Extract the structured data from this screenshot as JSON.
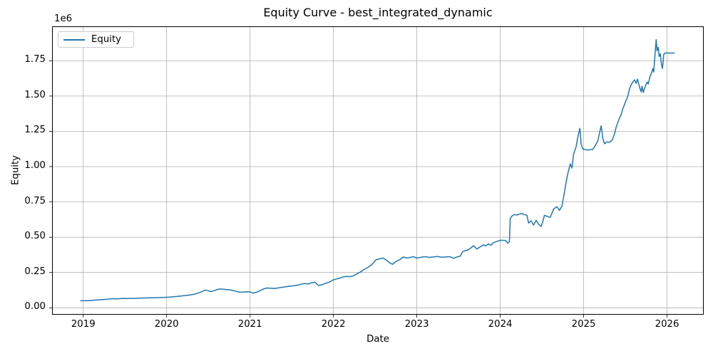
{
  "chart": {
    "title": "Equity Curve - best_integrated_dynamic",
    "xlabel": "Date",
    "ylabel": "Equity",
    "y_offset_label": "1e6",
    "legend": [
      {
        "label": "Equity",
        "color": "#1f77b4"
      }
    ],
    "colors": {
      "line": "#1f77b4",
      "grid": "#b0b0b0",
      "spine": "#000000",
      "background": "#ffffff",
      "legend_border": "#cccccc"
    }
  },
  "chart_data": {
    "type": "line",
    "title": "Equity Curve - best_integrated_dynamic",
    "xlabel": "Date",
    "ylabel": "Equity",
    "y_axis_unit": "1e6",
    "grid": true,
    "legend_position": "upper left",
    "xlim": [
      2018.626,
      2026.44
    ],
    "ylim": [
      -49000,
      1994000
    ],
    "xticks": [
      2019,
      2020,
      2021,
      2022,
      2023,
      2024,
      2025,
      2026
    ],
    "yticks": [
      {
        "value": 0,
        "label": "0.00"
      },
      {
        "value": 250000,
        "label": "0.25"
      },
      {
        "value": 500000,
        "label": "0.50"
      },
      {
        "value": 750000,
        "label": "0.75"
      },
      {
        "value": 1000000,
        "label": "1.00"
      },
      {
        "value": 1250000,
        "label": "1.25"
      },
      {
        "value": 1500000,
        "label": "1.50"
      },
      {
        "value": 1750000,
        "label": "1.75"
      }
    ],
    "series": [
      {
        "name": "Equity",
        "color": "#1f77b4",
        "points": [
          [
            2018.97,
            50000
          ],
          [
            2019.0,
            50000
          ],
          [
            2019.05,
            51000
          ],
          [
            2019.1,
            52000
          ],
          [
            2019.15,
            55000
          ],
          [
            2019.2,
            57000
          ],
          [
            2019.25,
            59000
          ],
          [
            2019.3,
            61000
          ],
          [
            2019.33,
            63000
          ],
          [
            2019.36,
            65000
          ],
          [
            2019.4,
            62500
          ],
          [
            2019.44,
            65000
          ],
          [
            2019.48,
            66500
          ],
          [
            2019.52,
            65000
          ],
          [
            2019.56,
            67000
          ],
          [
            2019.6,
            66000
          ],
          [
            2019.64,
            67500
          ],
          [
            2019.68,
            68500
          ],
          [
            2019.72,
            69500
          ],
          [
            2019.76,
            70000
          ],
          [
            2019.8,
            70500
          ],
          [
            2019.84,
            71000
          ],
          [
            2019.88,
            71500
          ],
          [
            2019.92,
            72500
          ],
          [
            2019.96,
            73500
          ],
          [
            2020.0,
            74500
          ],
          [
            2020.04,
            76000
          ],
          [
            2020.08,
            78000
          ],
          [
            2020.12,
            80000
          ],
          [
            2020.16,
            82500
          ],
          [
            2020.2,
            85000
          ],
          [
            2020.24,
            87500
          ],
          [
            2020.28,
            90500
          ],
          [
            2020.32,
            95000
          ],
          [
            2020.36,
            101000
          ],
          [
            2020.4,
            109000
          ],
          [
            2020.44,
            119000
          ],
          [
            2020.46,
            126000
          ],
          [
            2020.5,
            121000
          ],
          [
            2020.53,
            115000
          ],
          [
            2020.56,
            119000
          ],
          [
            2020.6,
            128000
          ],
          [
            2020.64,
            133000
          ],
          [
            2020.68,
            131000
          ],
          [
            2020.72,
            129000
          ],
          [
            2020.76,
            127000
          ],
          [
            2020.8,
            122000
          ],
          [
            2020.84,
            116000
          ],
          [
            2020.88,
            110000
          ],
          [
            2020.92,
            112000
          ],
          [
            2020.96,
            113000
          ],
          [
            2021.0,
            112000
          ],
          [
            2021.04,
            104000
          ],
          [
            2021.08,
            110000
          ],
          [
            2021.12,
            121000
          ],
          [
            2021.16,
            133000
          ],
          [
            2021.2,
            140000
          ],
          [
            2021.25,
            138000
          ],
          [
            2021.3,
            137000
          ],
          [
            2021.35,
            142000
          ],
          [
            2021.4,
            146000
          ],
          [
            2021.45,
            151000
          ],
          [
            2021.5,
            154000
          ],
          [
            2021.55,
            158000
          ],
          [
            2021.6,
            165000
          ],
          [
            2021.65,
            172000
          ],
          [
            2021.7,
            169000
          ],
          [
            2021.74,
            177000
          ],
          [
            2021.78,
            181000
          ],
          [
            2021.82,
            158000
          ],
          [
            2021.86,
            163000
          ],
          [
            2021.9,
            172000
          ],
          [
            2021.95,
            182000
          ],
          [
            2022.0,
            198000
          ],
          [
            2022.04,
            204000
          ],
          [
            2022.08,
            211000
          ],
          [
            2022.12,
            220000
          ],
          [
            2022.16,
            222000
          ],
          [
            2022.2,
            221000
          ],
          [
            2022.24,
            227000
          ],
          [
            2022.28,
            240000
          ],
          [
            2022.32,
            252000
          ],
          [
            2022.37,
            272000
          ],
          [
            2022.42,
            289000
          ],
          [
            2022.46,
            306000
          ],
          [
            2022.51,
            340000
          ],
          [
            2022.56,
            348000
          ],
          [
            2022.6,
            352000
          ],
          [
            2022.64,
            335000
          ],
          [
            2022.68,
            316000
          ],
          [
            2022.71,
            308000
          ],
          [
            2022.75,
            328000
          ],
          [
            2022.8,
            342000
          ],
          [
            2022.84,
            360000
          ],
          [
            2022.88,
            352000
          ],
          [
            2022.92,
            357000
          ],
          [
            2022.96,
            362000
          ],
          [
            2023.0,
            352000
          ],
          [
            2023.05,
            358000
          ],
          [
            2023.1,
            362000
          ],
          [
            2023.15,
            357000
          ],
          [
            2023.2,
            360000
          ],
          [
            2023.25,
            363000
          ],
          [
            2023.3,
            358000
          ],
          [
            2023.35,
            360000
          ],
          [
            2023.4,
            362000
          ],
          [
            2023.44,
            350000
          ],
          [
            2023.48,
            360000
          ],
          [
            2023.52,
            365000
          ],
          [
            2023.55,
            398000
          ],
          [
            2023.58,
            405000
          ],
          [
            2023.62,
            412000
          ],
          [
            2023.65,
            425000
          ],
          [
            2023.68,
            440000
          ],
          [
            2023.72,
            416000
          ],
          [
            2023.76,
            432000
          ],
          [
            2023.8,
            447000
          ],
          [
            2023.82,
            438000
          ],
          [
            2023.86,
            452000
          ],
          [
            2023.89,
            444000
          ],
          [
            2023.92,
            462000
          ],
          [
            2023.96,
            470000
          ],
          [
            2024.0,
            478000
          ],
          [
            2024.05,
            478000
          ],
          [
            2024.07,
            474000
          ],
          [
            2024.09,
            458000
          ],
          [
            2024.11,
            470000
          ],
          [
            2024.12,
            633000
          ],
          [
            2024.14,
            650000
          ],
          [
            2024.17,
            660000
          ],
          [
            2024.2,
            657000
          ],
          [
            2024.23,
            664000
          ],
          [
            2024.26,
            668000
          ],
          [
            2024.29,
            660000
          ],
          [
            2024.32,
            656000
          ],
          [
            2024.34,
            600000
          ],
          [
            2024.37,
            616000
          ],
          [
            2024.4,
            586000
          ],
          [
            2024.43,
            620000
          ],
          [
            2024.46,
            592000
          ],
          [
            2024.49,
            576000
          ],
          [
            2024.51,
            610000
          ],
          [
            2024.53,
            655000
          ],
          [
            2024.57,
            646000
          ],
          [
            2024.6,
            640000
          ],
          [
            2024.64,
            700000
          ],
          [
            2024.68,
            716000
          ],
          [
            2024.71,
            690000
          ],
          [
            2024.74,
            722000
          ],
          [
            2024.77,
            820000
          ],
          [
            2024.79,
            890000
          ],
          [
            2024.81,
            950000
          ],
          [
            2024.84,
            1020000
          ],
          [
            2024.86,
            990000
          ],
          [
            2024.88,
            1090000
          ],
          [
            2024.91,
            1140000
          ],
          [
            2024.93,
            1210000
          ],
          [
            2024.955,
            1271000
          ],
          [
            2024.97,
            1160000
          ],
          [
            2024.99,
            1125000
          ],
          [
            2025.02,
            1120000
          ],
          [
            2025.05,
            1118000
          ],
          [
            2025.08,
            1121000
          ],
          [
            2025.11,
            1123000
          ],
          [
            2025.14,
            1150000
          ],
          [
            2025.17,
            1182000
          ],
          [
            2025.21,
            1290000
          ],
          [
            2025.23,
            1200000
          ],
          [
            2025.25,
            1162000
          ],
          [
            2025.28,
            1176000
          ],
          [
            2025.31,
            1172000
          ],
          [
            2025.34,
            1186000
          ],
          [
            2025.37,
            1230000
          ],
          [
            2025.39,
            1280000
          ],
          [
            2025.42,
            1330000
          ],
          [
            2025.45,
            1370000
          ],
          [
            2025.47,
            1410000
          ],
          [
            2025.49,
            1440000
          ],
          [
            2025.51,
            1470000
          ],
          [
            2025.53,
            1500000
          ],
          [
            2025.55,
            1550000
          ],
          [
            2025.57,
            1580000
          ],
          [
            2025.59,
            1600000
          ],
          [
            2025.61,
            1615000
          ],
          [
            2025.63,
            1590000
          ],
          [
            2025.645,
            1620000
          ],
          [
            2025.66,
            1585000
          ],
          [
            2025.675,
            1555000
          ],
          [
            2025.69,
            1530000
          ],
          [
            2025.7,
            1570000
          ],
          [
            2025.715,
            1525000
          ],
          [
            2025.73,
            1555000
          ],
          [
            2025.75,
            1585000
          ],
          [
            2025.76,
            1600000
          ],
          [
            2025.775,
            1585000
          ],
          [
            2025.79,
            1625000
          ],
          [
            2025.8,
            1645000
          ],
          [
            2025.815,
            1665000
          ],
          [
            2025.83,
            1695000
          ],
          [
            2025.84,
            1670000
          ],
          [
            2025.85,
            1750000
          ],
          [
            2025.87,
            1900000
          ],
          [
            2025.88,
            1820000
          ],
          [
            2025.895,
            1845000
          ],
          [
            2025.905,
            1780000
          ],
          [
            2025.92,
            1800000
          ],
          [
            2025.93,
            1740000
          ],
          [
            2025.945,
            1695000
          ],
          [
            2025.96,
            1795000
          ],
          [
            2025.975,
            1805000
          ],
          [
            2026.0,
            1805000
          ],
          [
            2026.085,
            1805000
          ]
        ]
      }
    ]
  }
}
